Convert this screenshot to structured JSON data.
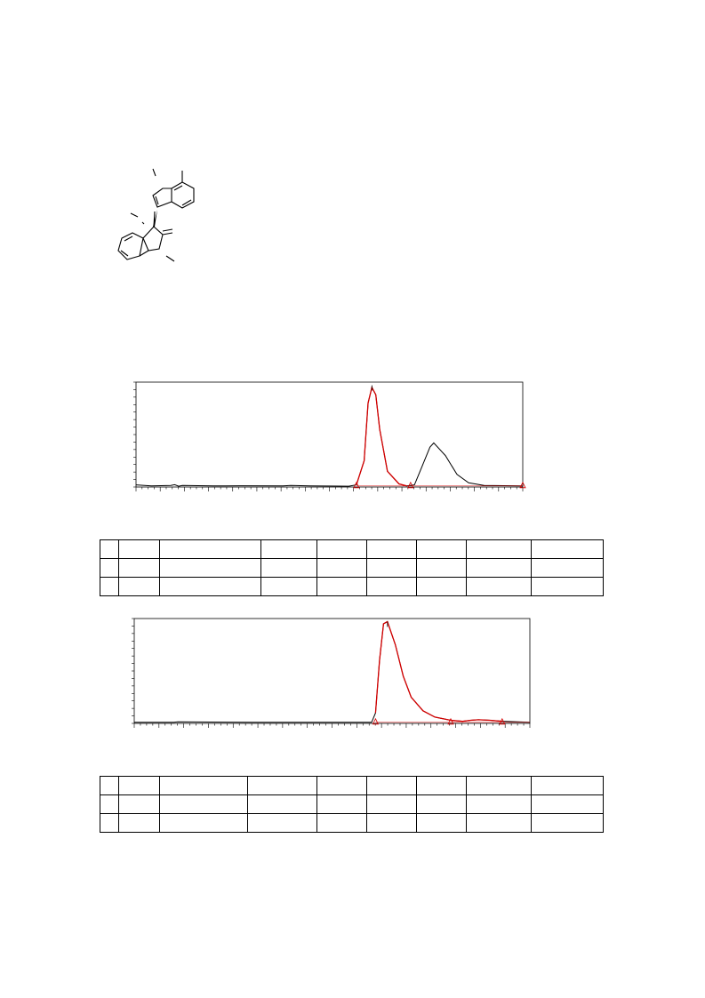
{
  "structure": {
    "name": "indole-oxindole compound",
    "labels": {
      "n_top": "",
      "n_bottom": "",
      "o_carbonyl": "",
      "stereo": ""
    }
  },
  "chart_data": [
    {
      "type": "line",
      "title": "",
      "xlabel": "",
      "ylabel": "",
      "x_ticks_count": 64,
      "series": [
        {
          "kind": "trace",
          "points": [
            [
              0,
              0.98
            ],
            [
              0.04,
              0.99
            ],
            [
              0.09,
              0.985
            ],
            [
              0.1,
              0.978
            ],
            [
              0.11,
              0.992
            ],
            [
              0.12,
              0.985
            ],
            [
              0.2,
              0.99
            ],
            [
              0.27,
              0.988
            ],
            [
              0.38,
              0.99
            ],
            [
              0.4,
              0.985
            ],
            [
              0.45,
              0.99
            ],
            [
              0.55,
              0.992
            ],
            [
              0.57,
              0.98
            ],
            [
              0.59,
              0.75
            ],
            [
              0.6,
              0.2
            ],
            [
              0.61,
              0.05
            ],
            [
              0.62,
              0.12
            ],
            [
              0.63,
              0.45
            ],
            [
              0.65,
              0.85
            ],
            [
              0.68,
              0.97
            ],
            [
              0.7,
              0.99
            ],
            [
              0.72,
              0.98
            ],
            [
              0.74,
              0.8
            ],
            [
              0.76,
              0.62
            ],
            [
              0.77,
              0.58
            ],
            [
              0.8,
              0.7
            ],
            [
              0.83,
              0.88
            ],
            [
              0.86,
              0.96
            ],
            [
              0.9,
              0.985
            ],
            [
              1,
              0.99
            ]
          ]
        }
      ],
      "peaks": [
        {
          "start": 0.57,
          "apex": 0.61,
          "end": 0.71,
          "color": "#d40000"
        }
      ],
      "markers": [
        0.57,
        0.71,
        1.0
      ]
    },
    {
      "type": "line",
      "title": "",
      "xlabel": "",
      "ylabel": "",
      "x_ticks_count": 64,
      "series": [
        {
          "kind": "trace",
          "points": [
            [
              0,
              0.99
            ],
            [
              0.1,
              0.99
            ],
            [
              0.11,
              0.985
            ],
            [
              0.3,
              0.99
            ],
            [
              0.55,
              0.99
            ],
            [
              0.6,
              0.99
            ],
            [
              0.61,
              0.9
            ],
            [
              0.62,
              0.4
            ],
            [
              0.63,
              0.05
            ],
            [
              0.64,
              0.03
            ],
            [
              0.66,
              0.25
            ],
            [
              0.68,
              0.55
            ],
            [
              0.7,
              0.75
            ],
            [
              0.73,
              0.88
            ],
            [
              0.76,
              0.94
            ],
            [
              0.8,
              0.97
            ],
            [
              0.83,
              0.98
            ],
            [
              0.85,
              0.97
            ],
            [
              0.87,
              0.965
            ],
            [
              0.9,
              0.97
            ],
            [
              0.93,
              0.98
            ],
            [
              1,
              0.99
            ]
          ]
        }
      ],
      "peaks": [
        {
          "start": 0.61,
          "apex": 0.64,
          "end": 0.93,
          "color": "#d40000"
        }
      ],
      "markers": [
        0.61,
        0.8,
        0.93
      ]
    }
  ],
  "tables": [
    {
      "columns": 9,
      "rows": [
        [
          "",
          "",
          "",
          "",
          "",
          "",
          "",
          "",
          ""
        ],
        [
          "",
          "",
          "",
          "",
          "",
          "",
          "",
          "",
          ""
        ],
        [
          "",
          "",
          "",
          "",
          "",
          "",
          "",
          "",
          ""
        ]
      ]
    },
    {
      "columns": 9,
      "rows": [
        [
          "",
          "",
          "",
          "",
          "",
          "",
          "",
          "",
          ""
        ],
        [
          "",
          "",
          "",
          "",
          "",
          "",
          "",
          "",
          ""
        ],
        [
          "",
          "",
          "",
          "",
          "",
          "",
          "",
          "",
          ""
        ]
      ]
    }
  ]
}
